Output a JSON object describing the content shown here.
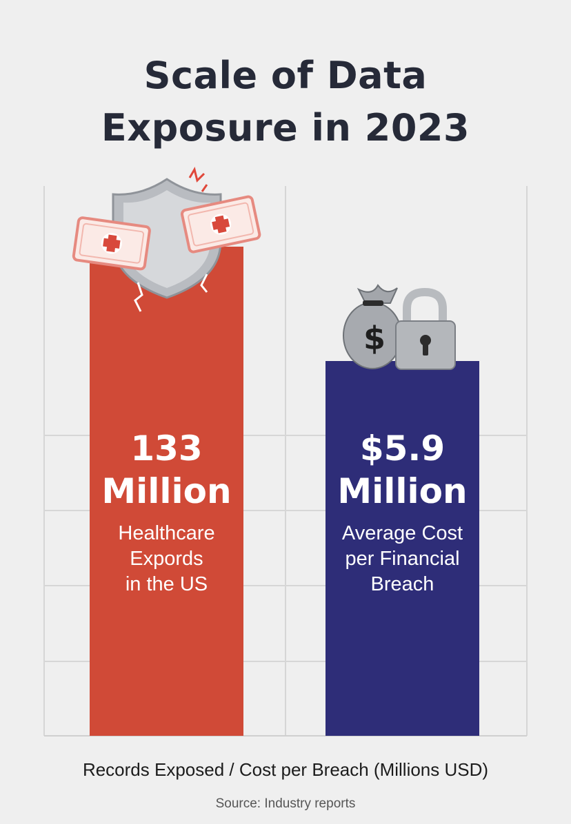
{
  "title_lines": [
    "Scale of Data",
    "Exposure in 2023"
  ],
  "chart_data": {
    "type": "bar",
    "categories": [
      "Healthcare Expords in the US",
      "Average Cost per Financial Breach"
    ],
    "values": [
      133,
      5.9
    ],
    "xlabel": "Records Exposed / Cost per Breach (Millions USD)",
    "source": "Source: Industry reports",
    "grid": true,
    "bars": [
      {
        "value_label_lines": [
          "133",
          "Million"
        ],
        "desc_lines": [
          "Healthcare",
          "Expords",
          "in the US"
        ],
        "color": "#d04a37",
        "icon": "shield-with-cracked-medical-records-icon"
      },
      {
        "value_label_lines": [
          "$5.9",
          "Million"
        ],
        "desc_lines": [
          "Average Cost",
          "per Financial",
          "Breach"
        ],
        "color": "#2e2d78",
        "icon": "money-bag-and-padlock-icon"
      }
    ]
  }
}
